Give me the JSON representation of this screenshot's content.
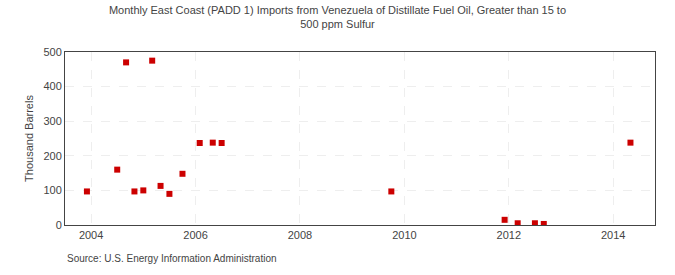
{
  "chart_data": {
    "type": "scatter",
    "title": "Monthly East Coast (PADD 1) Imports from Venezuela of Distillate Fuel Oil, Greater than 15 to\n500 ppm Sulfur",
    "ylabel": "Thousand Barrels",
    "annotations": [
      "Source: U.S. Energy Information Administration"
    ],
    "color": "#cc0000",
    "marker": "square",
    "grid": true,
    "xlim": [
      2003.5,
      2014.8
    ],
    "xticks": [
      2004,
      2006,
      2008,
      2010,
      2012,
      2014
    ],
    "ylim": [
      0,
      500
    ],
    "yticks": [
      0,
      100,
      200,
      300,
      400,
      500
    ],
    "x": [
      2003.92,
      2004.5,
      2004.67,
      2004.83,
      2005.0,
      2005.17,
      2005.33,
      2005.5,
      2005.75,
      2006.08,
      2006.33,
      2006.5,
      2009.75,
      2011.92,
      2012.17,
      2012.5,
      2012.67,
      2014.33
    ],
    "values": [
      97,
      160,
      470,
      97,
      100,
      475,
      113,
      90,
      148,
      237,
      238,
      237,
      97,
      15,
      5,
      5,
      3,
      238
    ]
  }
}
